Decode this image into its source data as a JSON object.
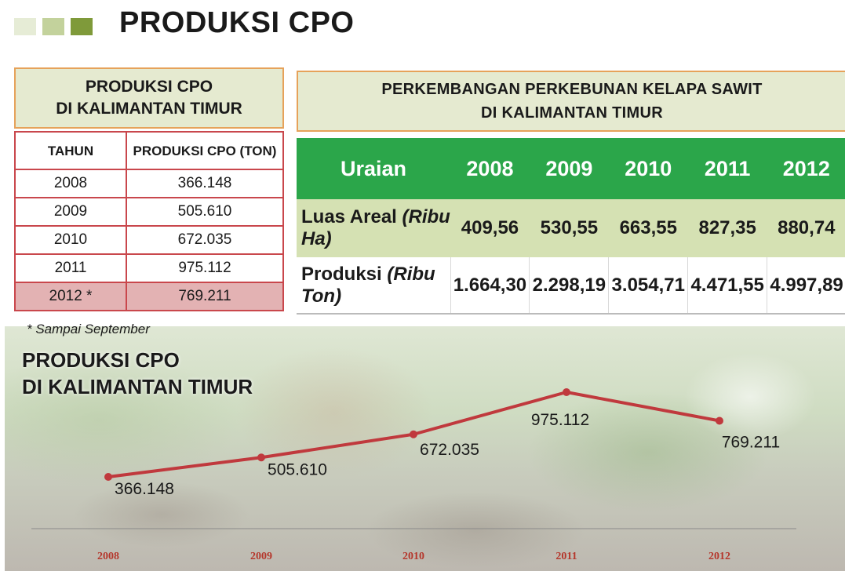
{
  "page_title": "PRODUKSI CPO",
  "colors": {
    "accent_green": "#2ba64a",
    "line_red": "#c0393d",
    "header_bg": "#e5ead0",
    "border_orange": "#e6a25a",
    "table_border": "#c9474c"
  },
  "left_table": {
    "title_line1": "PRODUKSI CPO",
    "title_line2": "DI KALIMANTAN TIMUR",
    "col_year": "TAHUN",
    "col_prod": "PRODUKSI CPO (TON)",
    "rows": [
      {
        "year": "2008",
        "value": "366.148"
      },
      {
        "year": "2009",
        "value": "505.610"
      },
      {
        "year": "2010",
        "value": "672.035"
      },
      {
        "year": "2011",
        "value": "975.112"
      },
      {
        "year": "2012 *",
        "value": "769.211"
      }
    ]
  },
  "right_table": {
    "title_line1": "PERKEMBANGAN PERKEBUNAN KELAPA SAWIT",
    "title_line2": "DI KALIMANTAN TIMUR",
    "head_label": "Uraian",
    "years": [
      "2008",
      "2009",
      "2010",
      "2011",
      "2012"
    ],
    "row1": {
      "label": "Luas Areal",
      "unit": "(Ribu Ha)",
      "values": [
        "409,56",
        "530,55",
        "663,55",
        "827,35",
        "880,74"
      ]
    },
    "row2": {
      "label": "Produksi",
      "unit": "(Ribu Ton)",
      "values": [
        "1.664,30",
        "2.298,19",
        "3.054,71",
        "4.471,55",
        "4.997,89"
      ]
    }
  },
  "footnote": "* Sampai September",
  "chart_data": {
    "type": "line",
    "title": "PRODUKSI CPO DI KALIMANTAN TIMUR",
    "title_line1": "PRODUKSI CPO",
    "title_line2": "DI KALIMANTAN TIMUR",
    "categories": [
      "2008",
      "2009",
      "2010",
      "2011",
      "2012"
    ],
    "values": [
      366148,
      505610,
      672035,
      975112,
      769211
    ],
    "data_labels": [
      "366.148",
      "505.610",
      "672.035",
      "975.112",
      "769.211"
    ],
    "xlabel": "",
    "ylabel": "",
    "grid": false,
    "legend": "none"
  }
}
